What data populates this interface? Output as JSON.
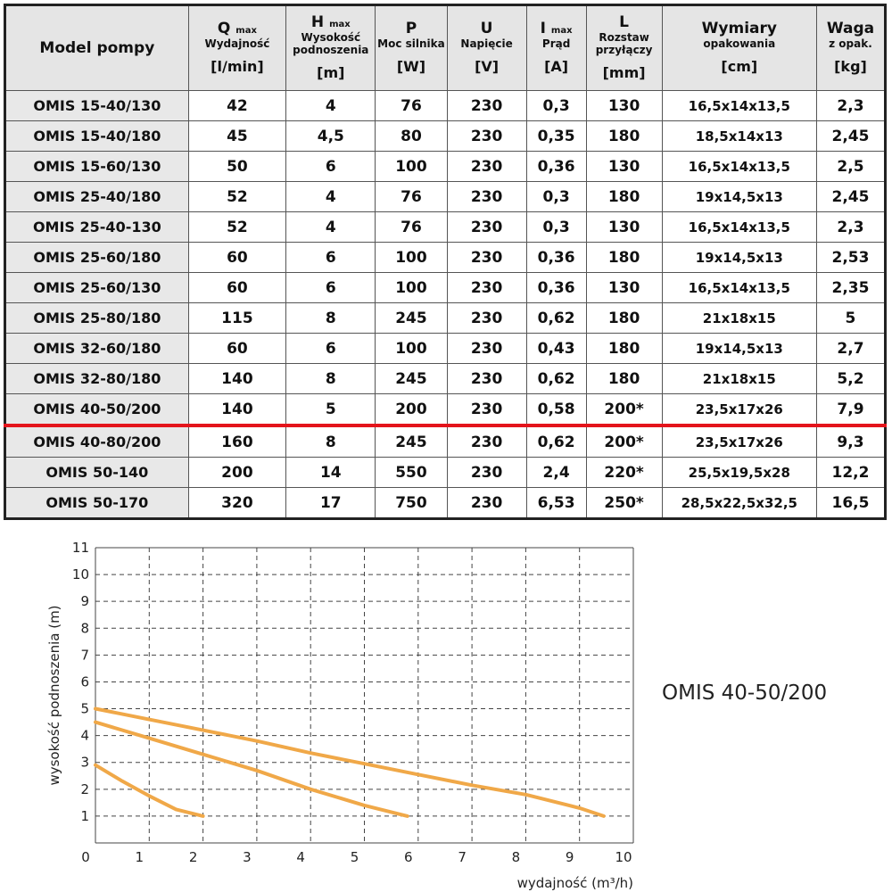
{
  "table": {
    "headers": [
      {
        "main": "Model pompy",
        "sub": "",
        "unit": ""
      },
      {
        "main": "Q",
        "subscript": "max",
        "sub": "Wydajność",
        "unit": "[l/min]"
      },
      {
        "main": "H",
        "subscript": "max",
        "sub": "Wysokość podnoszenia",
        "unit": "[m]"
      },
      {
        "main": "P",
        "subscript": "",
        "sub": "Moc silnika",
        "unit": "[W]"
      },
      {
        "main": "U",
        "subscript": "",
        "sub": "Napięcie",
        "unit": "[V]"
      },
      {
        "main": "I",
        "subscript": "max",
        "sub": "Prąd",
        "unit": "[A]"
      },
      {
        "main": "L",
        "subscript": "",
        "sub": "Rozstaw przyłączy",
        "unit": "[mm]"
      },
      {
        "main": "Wymiary",
        "subscript": "",
        "sub": "opakowania",
        "unit": "[cm]"
      },
      {
        "main": "Waga",
        "subscript": "",
        "sub": "z opak.",
        "unit": "[kg]"
      }
    ],
    "rows": [
      [
        "OMIS 15-40/130",
        "42",
        "4",
        "76",
        "230",
        "0,3",
        "130",
        "16,5x14x13,5",
        "2,3"
      ],
      [
        "OMIS 15-40/180",
        "45",
        "4,5",
        "80",
        "230",
        "0,35",
        "180",
        "18,5x14x13",
        "2,45"
      ],
      [
        "OMIS 15-60/130",
        "50",
        "6",
        "100",
        "230",
        "0,36",
        "130",
        "16,5x14x13,5",
        "2,5"
      ],
      [
        "OMIS 25-40/180",
        "52",
        "4",
        "76",
        "230",
        "0,3",
        "180",
        "19x14,5x13",
        "2,45"
      ],
      [
        "OMIS 25-40-130",
        "52",
        "4",
        "76",
        "230",
        "0,3",
        "130",
        "16,5x14x13,5",
        "2,3"
      ],
      [
        "OMIS 25-60/180",
        "60",
        "6",
        "100",
        "230",
        "0,36",
        "180",
        "19x14,5x13",
        "2,53"
      ],
      [
        "OMIS 25-60/130",
        "60",
        "6",
        "100",
        "230",
        "0,36",
        "130",
        "16,5x14x13,5",
        "2,35"
      ],
      [
        "OMIS 25-80/180",
        "115",
        "8",
        "245",
        "230",
        "0,62",
        "180",
        "21x18x15",
        "5"
      ],
      [
        "OMIS 32-60/180",
        "60",
        "6",
        "100",
        "230",
        "0,43",
        "180",
        "19x14,5x13",
        "2,7"
      ],
      [
        "OMIS 32-80/180",
        "140",
        "8",
        "245",
        "230",
        "0,62",
        "180",
        "21x18x15",
        "5,2"
      ],
      [
        "OMIS 40-50/200",
        "140",
        "5",
        "200",
        "230",
        "0,58",
        "200*",
        "23,5x17x26",
        "7,9"
      ],
      [
        "OMIS 40-80/200",
        "160",
        "8",
        "245",
        "230",
        "0,62",
        "200*",
        "23,5x17x26",
        "9,3"
      ],
      [
        "OMIS 50-140",
        "200",
        "14",
        "550",
        "230",
        "2,4",
        "220*",
        "25,5x19,5x28",
        "12,2"
      ],
      [
        "OMIS 50-170",
        "320",
        "17",
        "750",
        "230",
        "6,53",
        "250*",
        "28,5x22,5x32,5",
        "16,5"
      ]
    ],
    "highlight_after_row": 10,
    "highlight_color": "#e4141b"
  },
  "chart_title": "OMIS 40-50/200",
  "chart_data": {
    "type": "line",
    "xlabel": "wydajność (m³/h)",
    "ylabel": "wysokość podnoszenia (m)",
    "xlim": [
      0,
      10
    ],
    "ylim": [
      0,
      11
    ],
    "xticks": [
      0,
      1,
      2,
      3,
      4,
      5,
      6,
      7,
      8,
      9,
      10
    ],
    "yticks": [
      1,
      2,
      3,
      4,
      5,
      6,
      7,
      8,
      9,
      10,
      11
    ],
    "grid": true,
    "line_color": "#f0a848",
    "series": [
      {
        "x": [
          0,
          1,
          2,
          3,
          4,
          5,
          6,
          7,
          8,
          9,
          9.45
        ],
        "y": [
          5.0,
          4.6,
          4.2,
          3.8,
          3.35,
          2.95,
          2.55,
          2.15,
          1.8,
          1.3,
          1.0
        ]
      },
      {
        "x": [
          0,
          1,
          2,
          3,
          4,
          5,
          5.8
        ],
        "y": [
          4.5,
          3.9,
          3.3,
          2.7,
          2.0,
          1.4,
          1.0
        ]
      },
      {
        "x": [
          0,
          0.5,
          1,
          1.5,
          2.0
        ],
        "y": [
          2.9,
          2.3,
          1.75,
          1.25,
          1.0
        ]
      }
    ]
  }
}
